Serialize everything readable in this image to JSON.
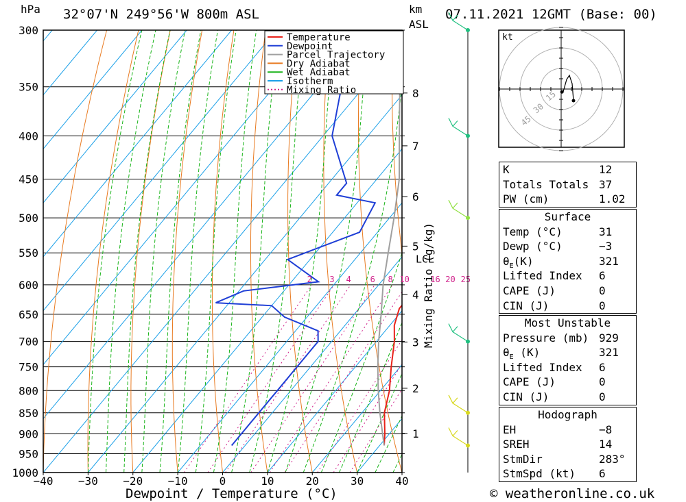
{
  "header": {
    "pressure_unit": "hPa",
    "location": "32°07'N  249°56'W  800m  ASL",
    "km_label": "km",
    "asl_label": "ASL",
    "datetime": "07.11.2021  12GMT  (Base: 00)"
  },
  "chart_data": {
    "type": "line",
    "title": "Skew-T log-P sounding",
    "xlabel": "Dewpoint / Temperature (°C)",
    "ylabel": "hPa",
    "mixing_ratio_label": "Mixing Ratio (g/kg)",
    "xlim": [
      -40,
      40
    ],
    "ylim": [
      1000,
      300
    ],
    "x_ticks": [
      "−40",
      "−30",
      "−20",
      "−10",
      "0",
      "10",
      "20",
      "30",
      "40"
    ],
    "x_tick_values": [
      -40,
      -30,
      -20,
      -10,
      0,
      10,
      20,
      30,
      40
    ],
    "pressure_levels": [
      300,
      350,
      400,
      450,
      500,
      550,
      600,
      650,
      700,
      750,
      800,
      850,
      900,
      950,
      1000
    ],
    "km_ticks": [
      {
        "label": "1",
        "pressure": 899
      },
      {
        "label": "2",
        "pressure": 795
      },
      {
        "label": "3",
        "pressure": 701
      },
      {
        "label": "4",
        "pressure": 616
      },
      {
        "label": "5",
        "pressure": 540
      },
      {
        "label": "6",
        "pressure": 472
      },
      {
        "label": "7",
        "pressure": 411
      },
      {
        "label": "8",
        "pressure": 356
      }
    ],
    "lcl": {
      "label": "LCL",
      "pressure": 548
    },
    "mixing_ratio_values": [
      2,
      3,
      4,
      6,
      8,
      10,
      16,
      20,
      25
    ],
    "mixing_ratio_labels": [
      "2",
      "3",
      "4",
      "6",
      "8",
      "10",
      "16",
      "20",
      "25"
    ],
    "legend": [
      "Temperature",
      "Dewpoint",
      "Parcel Trajectory",
      "Dry Adiabat",
      "Wet Adiabat",
      "Isotherm",
      "Mixing Ratio"
    ],
    "series": [
      {
        "name": "Temperature",
        "color": "#e8221a",
        "points": [
          [
            929,
            31
          ],
          [
            900,
            29
          ],
          [
            850,
            25
          ],
          [
            800,
            22
          ],
          [
            750,
            18
          ],
          [
            700,
            14
          ],
          [
            670,
            11
          ],
          [
            640,
            9
          ],
          [
            630,
            9
          ],
          [
            620,
            11
          ],
          [
            600,
            10
          ],
          [
            550,
            6
          ],
          [
            500,
            -1
          ],
          [
            450,
            -8
          ],
          [
            420,
            -12
          ],
          [
            400,
            -16
          ],
          [
            350,
            -27
          ],
          [
            300,
            -39
          ]
        ]
      },
      {
        "name": "Dewpoint",
        "color": "#1f3fd6",
        "points": [
          [
            929,
            -3
          ],
          [
            900,
            -3
          ],
          [
            850,
            -3
          ],
          [
            800,
            -3
          ],
          [
            750,
            -3
          ],
          [
            700,
            -3
          ],
          [
            680,
            -5
          ],
          [
            655,
            -15
          ],
          [
            635,
            -20
          ],
          [
            630,
            -33
          ],
          [
            610,
            -29
          ],
          [
            595,
            -14
          ],
          [
            560,
            -25
          ],
          [
            520,
            -14
          ],
          [
            480,
            -16
          ],
          [
            470,
            -26
          ],
          [
            455,
            -26
          ],
          [
            400,
            -38
          ],
          [
            350,
            -45
          ],
          [
            320,
            -49
          ],
          [
            300,
            -57
          ]
        ]
      },
      {
        "name": "Parcel Trajectory",
        "color": "#a0a0a0",
        "points": [
          [
            929,
            31
          ],
          [
            900,
            28.5
          ],
          [
            850,
            24
          ],
          [
            800,
            19.5
          ],
          [
            750,
            15
          ],
          [
            700,
            10.5
          ],
          [
            650,
            6
          ],
          [
            600,
            1
          ],
          [
            548,
            -4
          ],
          [
            500,
            -9
          ],
          [
            450,
            -15
          ],
          [
            400,
            -23
          ],
          [
            350,
            -32
          ],
          [
            300,
            -43
          ]
        ]
      }
    ],
    "hodograph": {
      "unit_label": "kt",
      "ring_labels": [
        "15",
        "30",
        "45"
      ],
      "storm_motion": {
        "dir_deg": 283,
        "speed_kt": 6
      }
    },
    "wind_profile": [
      {
        "pressure": 300,
        "color": "#20c080"
      },
      {
        "pressure": 400,
        "color": "#20c080"
      },
      {
        "pressure": 500,
        "color": "#90e040"
      },
      {
        "pressure": 700,
        "color": "#20c080"
      },
      {
        "pressure": 850,
        "color": "#d8d820"
      },
      {
        "pressure": 929,
        "color": "#d8d820"
      }
    ]
  },
  "indices": {
    "k": {
      "label": "K",
      "value": "12"
    },
    "totals": {
      "label": "Totals Totals",
      "value": "37"
    },
    "pw": {
      "label": "PW (cm)",
      "value": "1.02"
    }
  },
  "surface": {
    "title": "Surface",
    "temp": {
      "label": "Temp (°C)",
      "value": "31"
    },
    "dewp": {
      "label": "Dewp (°C)",
      "value": "−3"
    },
    "theta_label_main": "θ",
    "theta_label_sub": "E",
    "theta_label_unit": "(K)",
    "theta_value": "321",
    "lifted": {
      "label": "Lifted Index",
      "value": "6"
    },
    "cape": {
      "label": "CAPE (J)",
      "value": "0"
    },
    "cin": {
      "label": "CIN (J)",
      "value": "0"
    }
  },
  "most_unstable": {
    "title": "Most Unstable",
    "pressure": {
      "label": "Pressure (mb)",
      "value": "929"
    },
    "theta_label_main": "θ",
    "theta_label_sub": "E",
    "theta_label_unit": " (K)",
    "theta_value": "321",
    "lifted": {
      "label": "Lifted Index",
      "value": "6"
    },
    "cape": {
      "label": "CAPE (J)",
      "value": "0"
    },
    "cin": {
      "label": "CIN (J)",
      "value": "0"
    }
  },
  "hodograph_table": {
    "title": "Hodograph",
    "eh": {
      "label": "EH",
      "value": "−8"
    },
    "sreh": {
      "label": "SREH",
      "value": "14"
    },
    "stmdir": {
      "label": "StmDir",
      "value": "283°"
    },
    "stmspd": {
      "label": "StmSpd (kt)",
      "value": "6"
    }
  },
  "credit": "© weatheronline.co.uk",
  "colors": {
    "temperature": "#e8221a",
    "dewpoint": "#1f3fd6",
    "parcel": "#a0a0a0",
    "dry_adiabat": "#e87a20",
    "wet_adiabat": "#19b419",
    "isotherm": "#1aa0e8",
    "mixing_ratio": "#d0208a"
  }
}
